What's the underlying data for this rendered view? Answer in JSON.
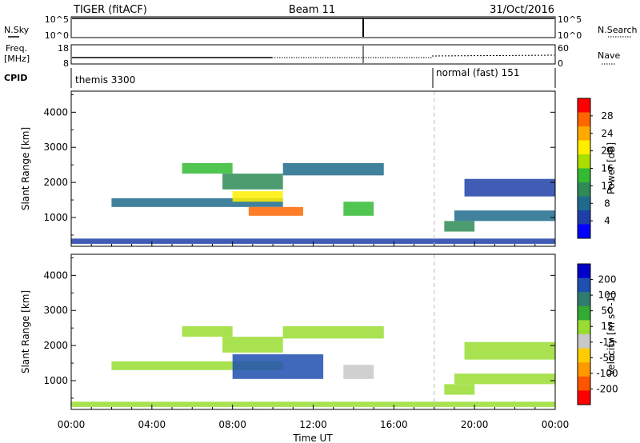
{
  "header": {
    "station": "TIGER (fitACF)",
    "beam": "Beam 11",
    "date": "31/Oct/2016"
  },
  "status_panels": {
    "nsky_label": "N.Sky",
    "nsearch_label": "N.Search",
    "nsky_ticks": [
      "10^5",
      "10^0"
    ],
    "nsearch_ticks": [
      "10^5",
      "10^0"
    ],
    "freq_label": "Freq.",
    "freq_unit": "[MHz]",
    "freq_ticks": [
      "18",
      "8"
    ],
    "nave_label": "Nave",
    "nave_ticks": [
      "60",
      "0"
    ],
    "cpid_label": "CPID",
    "cpid_segments": [
      {
        "name": "themis 3300",
        "start_hour": 0,
        "end_hour": 18
      },
      {
        "name": "normal (fast) 151",
        "start_hour": 18,
        "end_hour": 24
      }
    ]
  },
  "x_axis": {
    "label": "Time UT",
    "ticks": [
      "00:00",
      "04:00",
      "08:00",
      "12:00",
      "16:00",
      "20:00",
      "00:00"
    ]
  },
  "chart_data": [
    {
      "type": "heatmap",
      "name": "power",
      "ylabel": "Slant Range [km]",
      "colorbar_label": "Power [dB]",
      "x_range_hours": [
        0,
        24
      ],
      "ylim": [
        180,
        4600
      ],
      "y_ticks": [
        1000,
        2000,
        3000,
        4000
      ],
      "colorbar": {
        "ticks": [
          "28",
          "24",
          "20",
          "16",
          "12",
          "8",
          "4"
        ],
        "colors": [
          "#ff0000",
          "#ff6600",
          "#ffaa00",
          "#ffee00",
          "#aadd00",
          "#33bb33",
          "#2e8b57",
          "#1f6b8c",
          "#1f3fa8",
          "#0000ff"
        ]
      },
      "regions": [
        {
          "t0": 0.0,
          "t1": 24.0,
          "r0": 250,
          "r1": 400,
          "power_db": 6
        },
        {
          "t0": 2.0,
          "t1": 10.5,
          "r0": 1300,
          "r1": 1550,
          "power_db": 7
        },
        {
          "t0": 5.5,
          "t1": 8.0,
          "r0": 2250,
          "r1": 2550,
          "power_db": 14
        },
        {
          "t0": 7.5,
          "t1": 10.5,
          "r0": 1800,
          "r1": 2250,
          "power_db": 12
        },
        {
          "t0": 8.0,
          "t1": 10.5,
          "r0": 1450,
          "r1": 1750,
          "power_db": 20
        },
        {
          "t0": 8.8,
          "t1": 11.5,
          "r0": 1050,
          "r1": 1300,
          "power_db": 28
        },
        {
          "t0": 10.5,
          "t1": 15.5,
          "r0": 2200,
          "r1": 2550,
          "power_db": 8
        },
        {
          "t0": 13.5,
          "t1": 15.0,
          "r0": 1050,
          "r1": 1450,
          "power_db": 13
        },
        {
          "t0": 18.5,
          "t1": 20.0,
          "r0": 600,
          "r1": 900,
          "power_db": 12
        },
        {
          "t0": 19.5,
          "t1": 24.0,
          "r0": 1600,
          "r1": 2100,
          "power_db": 6
        },
        {
          "t0": 19.0,
          "t1": 24.0,
          "r0": 900,
          "r1": 1200,
          "power_db": 8
        }
      ]
    },
    {
      "type": "heatmap",
      "name": "velocity",
      "ylabel": "Slant Range [km]",
      "colorbar_label": "Velocity [m s^-1]",
      "x_range_hours": [
        0,
        24
      ],
      "ylim": [
        180,
        4600
      ],
      "y_ticks": [
        1000,
        2000,
        3000,
        4000
      ],
      "colorbar": {
        "ticks": [
          "200",
          "100",
          "50",
          "15",
          "-15",
          "-50",
          "-100",
          "-200"
        ],
        "colors": [
          "#0000cc",
          "#1f4fb0",
          "#2e7d6f",
          "#33aa33",
          "#99dd33",
          "#c8c8c8",
          "#ffcc00",
          "#ff9900",
          "#ff5500",
          "#ff0000"
        ]
      },
      "regions": [
        {
          "t0": 0.0,
          "t1": 24.0,
          "r0": 250,
          "r1": 400,
          "velocity": 0
        },
        {
          "t0": 2.0,
          "t1": 10.5,
          "r0": 1300,
          "r1": 1550,
          "velocity": 0
        },
        {
          "t0": 5.5,
          "t1": 8.0,
          "r0": 2250,
          "r1": 2550,
          "velocity": 0
        },
        {
          "t0": 7.5,
          "t1": 10.5,
          "r0": 1800,
          "r1": 2250,
          "velocity": 0
        },
        {
          "t0": 8.0,
          "t1": 12.5,
          "r0": 1050,
          "r1": 1750,
          "velocity": 150
        },
        {
          "t0": 10.5,
          "t1": 15.5,
          "r0": 2200,
          "r1": 2550,
          "velocity": 0
        },
        {
          "t0": 13.5,
          "t1": 15.0,
          "r0": 1050,
          "r1": 1450,
          "velocity": -20
        },
        {
          "t0": 18.5,
          "t1": 20.0,
          "r0": 600,
          "r1": 900,
          "velocity": 0
        },
        {
          "t0": 19.5,
          "t1": 24.0,
          "r0": 1600,
          "r1": 2100,
          "velocity": 0
        },
        {
          "t0": 19.0,
          "t1": 24.0,
          "r0": 900,
          "r1": 1200,
          "velocity": 0
        }
      ]
    }
  ]
}
